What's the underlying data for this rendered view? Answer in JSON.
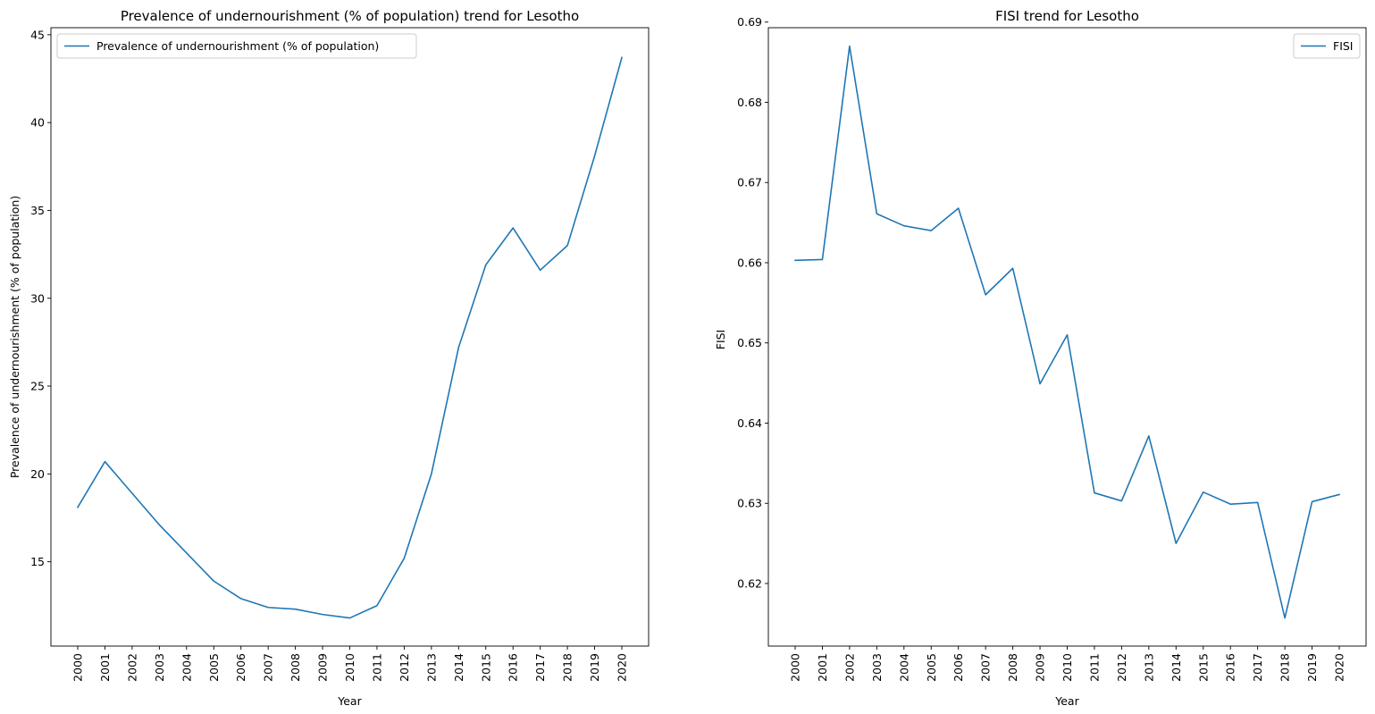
{
  "chart_data": [
    {
      "type": "line",
      "title": "Prevalence of undernourishment (% of population) trend for Lesotho",
      "xlabel": "Year",
      "ylabel": "Prevalence of undernourishment (% of population)",
      "x": [
        "2000",
        "2001",
        "2002",
        "2003",
        "2004",
        "2005",
        "2006",
        "2007",
        "2008",
        "2009",
        "2010",
        "2011",
        "2012",
        "2013",
        "2014",
        "2015",
        "2016",
        "2017",
        "2018",
        "2019",
        "2020"
      ],
      "yticks": [
        15,
        20,
        25,
        30,
        35,
        40,
        45
      ],
      "ylim": [
        10.2,
        45.4
      ],
      "series": [
        {
          "name": "Prevalence of undernourishment (% of population)",
          "values": [
            18.1,
            20.7,
            18.9,
            17.1,
            15.5,
            13.9,
            12.9,
            12.4,
            12.3,
            12.0,
            11.8,
            12.5,
            15.2,
            20.0,
            27.2,
            31.9,
            34.0,
            31.6,
            33.0,
            38.1,
            43.7
          ]
        }
      ],
      "legend_position": "upper-left",
      "grid": false,
      "color": "#1f77b4"
    },
    {
      "type": "line",
      "title": "FISI trend for Lesotho",
      "xlabel": "Year",
      "ylabel": "FISI",
      "x": [
        "2000",
        "2001",
        "2002",
        "2003",
        "2004",
        "2005",
        "2006",
        "2007",
        "2008",
        "2009",
        "2010",
        "2011",
        "2012",
        "2013",
        "2014",
        "2015",
        "2016",
        "2017",
        "2018",
        "2019",
        "2020"
      ],
      "yticks": [
        "0.62",
        "0.63",
        "0.64",
        "0.65",
        "0.66",
        "0.67",
        "0.68",
        "0.69"
      ],
      "ylim": [
        0.6122,
        0.6893
      ],
      "series": [
        {
          "name": "FISI",
          "values": [
            0.6603,
            0.6604,
            0.687,
            0.6661,
            0.6646,
            0.664,
            0.6668,
            0.656,
            0.6593,
            0.6449,
            0.651,
            0.6313,
            0.6303,
            0.6384,
            0.625,
            0.6314,
            0.6299,
            0.6301,
            0.6157,
            0.6302,
            0.6311
          ]
        }
      ],
      "legend_position": "upper-right",
      "grid": false,
      "color": "#1f77b4"
    }
  ]
}
